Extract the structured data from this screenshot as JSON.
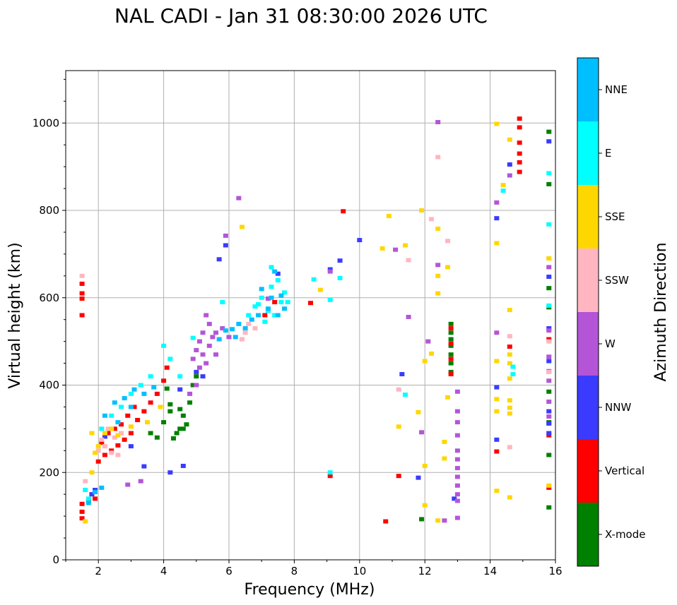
{
  "chart_data": {
    "type": "scatter",
    "title": "NAL CADI - Jan 31 08:30:00 2026 UTC",
    "xlabel": "Frequency (MHz)",
    "ylabel": "Virtual height (km)",
    "xlim": [
      1,
      16
    ],
    "ylim": [
      0,
      1120
    ],
    "xticks": [
      2,
      4,
      6,
      8,
      10,
      12,
      14,
      16
    ],
    "yticks": [
      0,
      200,
      400,
      600,
      800,
      1000
    ],
    "grid": true,
    "colorbar": {
      "label": "Azimuth Direction",
      "categories": [
        "X-mode",
        "Vertical",
        "NNW",
        "W",
        "SSW",
        "SSE",
        "E",
        "NNE"
      ],
      "colors": {
        "X-mode": "#008000",
        "Vertical": "#ff0000",
        "NNW": "#3b3bff",
        "W": "#b455d8",
        "SSW": "#ffb6c1",
        "SSE": "#ffd700",
        "E": "#00ffff",
        "NNE": "#00bfff"
      }
    },
    "series": [
      {
        "name": "X-mode",
        "points": [
          [
            4.3,
            278
          ],
          [
            4.5,
            300
          ],
          [
            4.6,
            330
          ],
          [
            4.2,
            356
          ],
          [
            4.7,
            310
          ],
          [
            4.4,
            290
          ],
          [
            3.8,
            280
          ],
          [
            4.8,
            360
          ],
          [
            4.9,
            400
          ],
          [
            5.0,
            420
          ],
          [
            4.1,
            392
          ],
          [
            4.5,
            345
          ],
          [
            3.6,
            290
          ],
          [
            4.0,
            315
          ],
          [
            4.6,
            300
          ],
          [
            4.2,
            340
          ],
          [
            12.8,
            430
          ],
          [
            12.8,
            450
          ],
          [
            12.8,
            470
          ],
          [
            12.8,
            490
          ],
          [
            12.8,
            505
          ],
          [
            12.8,
            520
          ],
          [
            12.8,
            540
          ],
          [
            15.8,
            120
          ],
          [
            15.8,
            240
          ],
          [
            15.8,
            315
          ],
          [
            15.8,
            385
          ],
          [
            15.8,
            578
          ],
          [
            15.8,
            622
          ],
          [
            15.8,
            860
          ],
          [
            15.8,
            980
          ],
          [
            11.9,
            93
          ]
        ]
      },
      {
        "name": "Vertical",
        "points": [
          [
            1.5,
            95
          ],
          [
            1.5,
            110
          ],
          [
            1.5,
            128
          ],
          [
            1.7,
            135
          ],
          [
            1.8,
            150
          ],
          [
            1.9,
            140
          ],
          [
            1.5,
            560
          ],
          [
            1.5,
            598
          ],
          [
            1.5,
            610
          ],
          [
            1.5,
            632
          ],
          [
            2.0,
            225
          ],
          [
            2.2,
            240
          ],
          [
            2.4,
            250
          ],
          [
            2.6,
            262
          ],
          [
            2.8,
            275
          ],
          [
            3.0,
            290
          ],
          [
            2.5,
            300
          ],
          [
            2.1,
            268
          ],
          [
            2.3,
            290
          ],
          [
            3.2,
            320
          ],
          [
            3.4,
            340
          ],
          [
            3.6,
            360
          ],
          [
            3.8,
            380
          ],
          [
            4.0,
            410
          ],
          [
            4.1,
            440
          ],
          [
            2.9,
            330
          ],
          [
            3.1,
            350
          ],
          [
            2.7,
            310
          ],
          [
            7.1,
            560
          ],
          [
            7.4,
            590
          ],
          [
            8.5,
            588
          ],
          [
            9.1,
            192
          ],
          [
            10.8,
            88
          ],
          [
            11.2,
            192
          ],
          [
            12.8,
            425
          ],
          [
            12.8,
            460
          ],
          [
            12.8,
            495
          ],
          [
            12.8,
            530
          ],
          [
            14.2,
            248
          ],
          [
            14.6,
            488
          ],
          [
            14.9,
            888
          ],
          [
            14.9,
            910
          ],
          [
            14.9,
            930
          ],
          [
            14.9,
            955
          ],
          [
            14.9,
            990
          ],
          [
            14.9,
            1010
          ],
          [
            15.8,
            165
          ],
          [
            15.8,
            285
          ],
          [
            15.8,
            505
          ],
          [
            9.5,
            798
          ]
        ]
      },
      {
        "name": "NNW",
        "points": [
          [
            1.8,
            150
          ],
          [
            1.9,
            160
          ],
          [
            2.2,
            282
          ],
          [
            3.0,
            260
          ],
          [
            3.4,
            214
          ],
          [
            4.2,
            200
          ],
          [
            4.6,
            215
          ],
          [
            4.5,
            390
          ],
          [
            5.0,
            430
          ],
          [
            5.7,
            688
          ],
          [
            5.9,
            720
          ],
          [
            7.5,
            655
          ],
          [
            9.1,
            665
          ],
          [
            9.4,
            685
          ],
          [
            10.0,
            732
          ],
          [
            11.3,
            425
          ],
          [
            11.8,
            188
          ],
          [
            12.9,
            140
          ],
          [
            14.2,
            275
          ],
          [
            14.2,
            395
          ],
          [
            14.2,
            782
          ],
          [
            14.6,
            905
          ],
          [
            15.8,
            290
          ],
          [
            15.8,
            312
          ],
          [
            15.8,
            340
          ],
          [
            15.8,
            455
          ],
          [
            15.8,
            530
          ],
          [
            15.8,
            648
          ],
          [
            15.8,
            958
          ],
          [
            5.2,
            420
          ]
        ]
      },
      {
        "name": "W",
        "points": [
          [
            4.9,
            460
          ],
          [
            5.0,
            480
          ],
          [
            5.1,
            500
          ],
          [
            5.2,
            470
          ],
          [
            5.3,
            450
          ],
          [
            5.4,
            490
          ],
          [
            5.5,
            510
          ],
          [
            5.2,
            520
          ],
          [
            5.4,
            540
          ],
          [
            5.6,
            520
          ],
          [
            5.3,
            560
          ],
          [
            5.8,
            530
          ],
          [
            6.0,
            510
          ],
          [
            5.1,
            440
          ],
          [
            5.0,
            400
          ],
          [
            4.8,
            380
          ],
          [
            3.3,
            180
          ],
          [
            2.9,
            172
          ],
          [
            5.9,
            742
          ],
          [
            6.3,
            828
          ],
          [
            7.2,
            598
          ],
          [
            9.1,
            660
          ],
          [
            11.1,
            710
          ],
          [
            11.5,
            556
          ],
          [
            11.9,
            292
          ],
          [
            12.1,
            500
          ],
          [
            12.4,
            675
          ],
          [
            12.4,
            1002
          ],
          [
            12.6,
            90
          ],
          [
            13.0,
            135
          ],
          [
            13.0,
            150
          ],
          [
            13.0,
            170
          ],
          [
            13.0,
            190
          ],
          [
            13.0,
            210
          ],
          [
            13.0,
            230
          ],
          [
            13.0,
            250
          ],
          [
            13.0,
            285
          ],
          [
            13.0,
            315
          ],
          [
            13.0,
            340
          ],
          [
            13.0,
            385
          ],
          [
            13.0,
            96
          ],
          [
            14.2,
            520
          ],
          [
            14.2,
            818
          ],
          [
            14.6,
            880
          ],
          [
            15.8,
            328
          ],
          [
            15.8,
            362
          ],
          [
            15.8,
            410
          ],
          [
            15.8,
            432
          ],
          [
            15.8,
            465
          ],
          [
            15.8,
            525
          ],
          [
            15.8,
            670
          ],
          [
            5.6,
            470
          ]
        ]
      },
      {
        "name": "SSW",
        "points": [
          [
            1.5,
            650
          ],
          [
            2.0,
            250
          ],
          [
            2.2,
            260
          ],
          [
            2.4,
            245
          ],
          [
            2.6,
            240
          ],
          [
            2.3,
            300
          ],
          [
            2.5,
            280
          ],
          [
            2.7,
            290
          ],
          [
            2.1,
            275
          ],
          [
            6.5,
            520
          ],
          [
            6.6,
            540
          ],
          [
            6.8,
            530
          ],
          [
            6.4,
            505
          ],
          [
            11.2,
            390
          ],
          [
            11.5,
            686
          ],
          [
            12.2,
            780
          ],
          [
            12.4,
            922
          ],
          [
            12.7,
            730
          ],
          [
            14.6,
            258
          ],
          [
            14.6,
            512
          ],
          [
            15.8,
            430
          ],
          [
            15.8,
            500
          ],
          [
            15.8,
            690
          ],
          [
            1.6,
            180
          ]
        ]
      },
      {
        "name": "SSE",
        "points": [
          [
            1.6,
            88
          ],
          [
            1.8,
            200
          ],
          [
            2.0,
            260
          ],
          [
            2.2,
            290
          ],
          [
            2.4,
            300
          ],
          [
            2.6,
            285
          ],
          [
            3.5,
            315
          ],
          [
            3.0,
            305
          ],
          [
            1.8,
            290
          ],
          [
            1.9,
            245
          ],
          [
            6.4,
            762
          ],
          [
            8.8,
            618
          ],
          [
            10.7,
            713
          ],
          [
            10.9,
            787
          ],
          [
            11.2,
            305
          ],
          [
            11.4,
            720
          ],
          [
            11.8,
            338
          ],
          [
            11.9,
            800
          ],
          [
            12.0,
            215
          ],
          [
            12.0,
            125
          ],
          [
            12.0,
            455
          ],
          [
            12.2,
            472
          ],
          [
            12.4,
            610
          ],
          [
            12.4,
            650
          ],
          [
            12.4,
            90
          ],
          [
            12.4,
            758
          ],
          [
            12.6,
            270
          ],
          [
            12.6,
            232
          ],
          [
            12.7,
            670
          ],
          [
            12.7,
            372
          ],
          [
            14.2,
            158
          ],
          [
            14.2,
            340
          ],
          [
            14.2,
            368
          ],
          [
            14.2,
            455
          ],
          [
            14.2,
            725
          ],
          [
            14.2,
            998
          ],
          [
            14.4,
            858
          ],
          [
            14.6,
            143
          ],
          [
            14.6,
            335
          ],
          [
            14.6,
            348
          ],
          [
            14.6,
            365
          ],
          [
            14.6,
            415
          ],
          [
            14.6,
            450
          ],
          [
            14.6,
            470
          ],
          [
            14.6,
            572
          ],
          [
            14.6,
            962
          ],
          [
            15.8,
            170
          ],
          [
            15.8,
            690
          ],
          [
            3.9,
            350
          ]
        ]
      },
      {
        "name": "E",
        "points": [
          [
            1.6,
            160
          ],
          [
            1.7,
            140
          ],
          [
            2.1,
            300
          ],
          [
            2.4,
            330
          ],
          [
            2.7,
            350
          ],
          [
            3.0,
            380
          ],
          [
            3.3,
            400
          ],
          [
            3.6,
            420
          ],
          [
            4.0,
            490
          ],
          [
            4.2,
            460
          ],
          [
            4.5,
            420
          ],
          [
            6.6,
            560
          ],
          [
            6.8,
            580
          ],
          [
            7.0,
            600
          ],
          [
            7.2,
            570
          ],
          [
            7.4,
            560
          ],
          [
            7.6,
            590
          ],
          [
            7.8,
            590
          ],
          [
            7.1,
            545
          ],
          [
            7.3,
            625
          ],
          [
            7.5,
            640
          ],
          [
            7.3,
            670
          ],
          [
            6.9,
            585
          ],
          [
            7.7,
            612
          ],
          [
            8.6,
            642
          ],
          [
            9.1,
            200
          ],
          [
            9.1,
            595
          ],
          [
            9.4,
            645
          ],
          [
            11.4,
            378
          ],
          [
            14.4,
            845
          ],
          [
            14.7,
            425
          ],
          [
            14.7,
            442
          ],
          [
            15.8,
            768
          ],
          [
            15.8,
            885
          ],
          [
            15.8,
            582
          ],
          [
            4.9,
            508
          ],
          [
            5.8,
            590
          ]
        ]
      },
      {
        "name": "NNE",
        "points": [
          [
            1.7,
            130
          ],
          [
            2.2,
            330
          ],
          [
            2.5,
            360
          ],
          [
            2.8,
            370
          ],
          [
            3.1,
            390
          ],
          [
            3.4,
            380
          ],
          [
            3.7,
            395
          ],
          [
            2.6,
            315
          ],
          [
            3.0,
            350
          ],
          [
            6.2,
            510
          ],
          [
            6.5,
            530
          ],
          [
            6.7,
            550
          ],
          [
            6.9,
            560
          ],
          [
            7.2,
            575
          ],
          [
            7.5,
            560
          ],
          [
            7.7,
            575
          ],
          [
            6.3,
            540
          ],
          [
            7.0,
            620
          ],
          [
            7.3,
            600
          ],
          [
            7.6,
            605
          ],
          [
            7.4,
            660
          ],
          [
            1.9,
            155
          ],
          [
            2.1,
            165
          ],
          [
            5.9,
            525
          ],
          [
            5.7,
            505
          ],
          [
            6.1,
            528
          ]
        ]
      }
    ]
  }
}
